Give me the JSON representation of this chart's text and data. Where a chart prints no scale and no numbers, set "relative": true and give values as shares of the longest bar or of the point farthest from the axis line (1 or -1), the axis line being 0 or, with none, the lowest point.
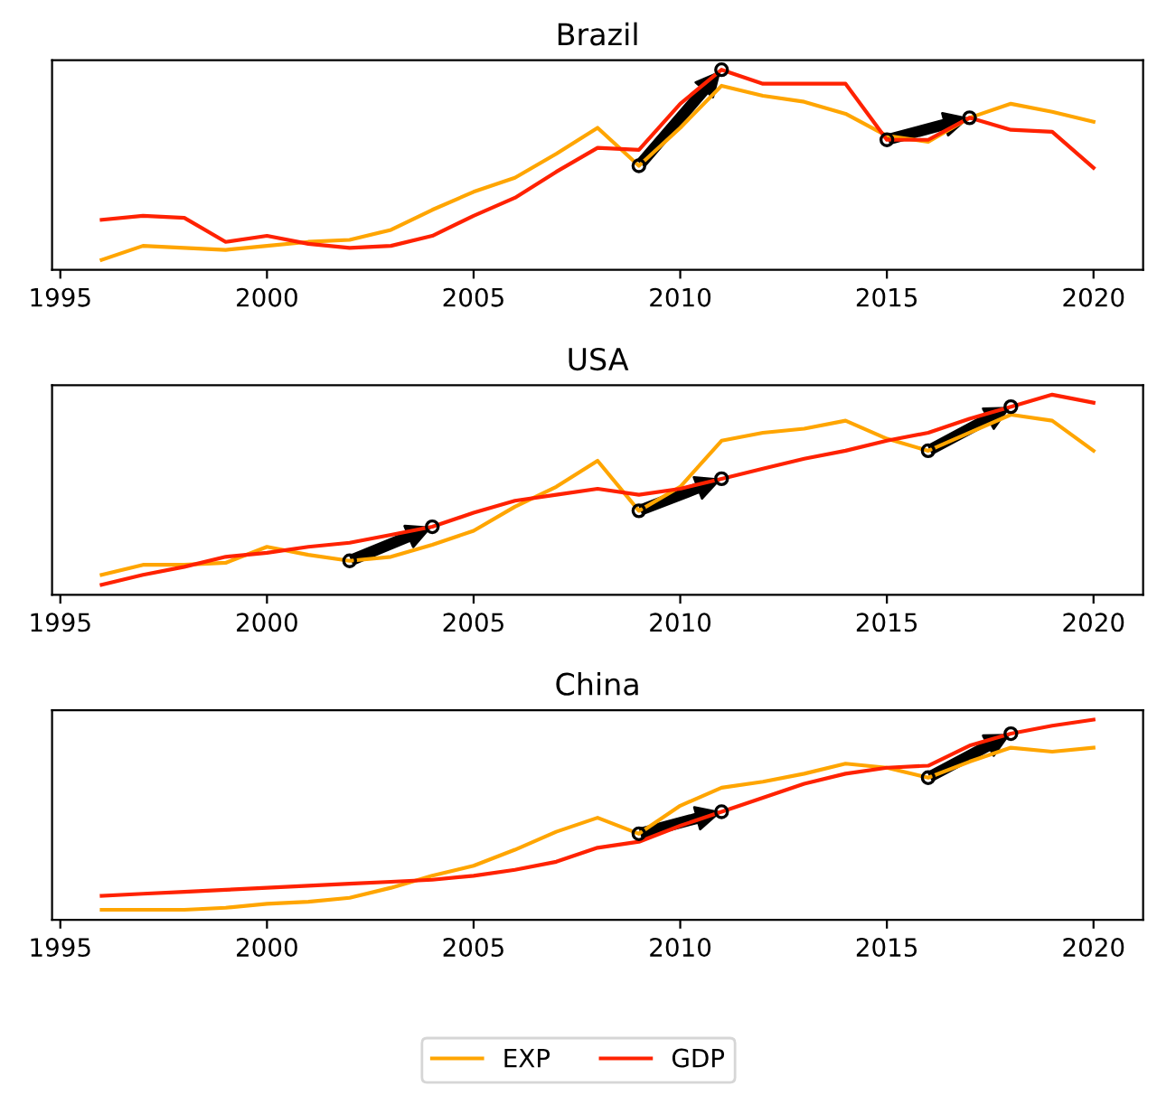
{
  "chart_data": [
    {
      "type": "line",
      "title": "Brazil",
      "relative": true,
      "legend": "bottom",
      "xlim": [
        1994.8,
        2021.2
      ],
      "xticks": [
        1995,
        2000,
        2005,
        2010,
        2015,
        2020
      ],
      "tick_labels": "x",
      "grid": false,
      "x": [
        1996,
        1997,
        1998,
        1999,
        2000,
        2001,
        2002,
        2003,
        2004,
        2005,
        2006,
        2007,
        2008,
        2009,
        2010,
        2011,
        2012,
        2013,
        2014,
        2015,
        2016,
        2017,
        2018,
        2019,
        2020
      ],
      "series": [
        {
          "name": "EXP",
          "color": "#ffa500",
          "values": [
            0.05,
            0.12,
            0.11,
            0.1,
            0.12,
            0.14,
            0.15,
            0.2,
            0.3,
            0.39,
            0.46,
            0.58,
            0.71,
            0.52,
            0.71,
            0.92,
            0.87,
            0.84,
            0.78,
            0.67,
            0.64,
            0.76,
            0.83,
            0.79,
            0.74
          ]
        },
        {
          "name": "GDP",
          "color": "#ff2200",
          "values": [
            0.25,
            0.27,
            0.26,
            0.14,
            0.17,
            0.13,
            0.11,
            0.12,
            0.17,
            0.27,
            0.36,
            0.49,
            0.61,
            0.6,
            0.83,
            1.0,
            0.93,
            0.93,
            0.93,
            0.65,
            0.65,
            0.76,
            0.7,
            0.69,
            0.51
          ]
        },
        {
          "type": "scatter",
          "color": "#000000",
          "marker": "circle",
          "x": [
            2009,
            2011
          ],
          "values": [
            0.52,
            1.0
          ]
        },
        {
          "type": "scatter",
          "color": "#000000",
          "marker": "circle",
          "x": [
            2015,
            2017
          ],
          "values": [
            0.65,
            0.76
          ]
        }
      ]
    },
    {
      "type": "line",
      "title": "USA",
      "relative": true,
      "xlim": [
        1994.8,
        2021.2
      ],
      "xticks": [
        1995,
        2000,
        2005,
        2010,
        2015,
        2020
      ],
      "tick_labels": "x",
      "grid": false,
      "x": [
        1996,
        1997,
        1998,
        1999,
        2000,
        2001,
        2002,
        2003,
        2004,
        2005,
        2006,
        2007,
        2008,
        2009,
        2010,
        2011,
        2012,
        2013,
        2014,
        2015,
        2016,
        2017,
        2018,
        2019,
        2020
      ],
      "series": [
        {
          "name": "EXP",
          "color": "#ffa500",
          "values": [
            0.1,
            0.15,
            0.15,
            0.16,
            0.24,
            0.2,
            0.17,
            0.19,
            0.25,
            0.32,
            0.44,
            0.54,
            0.67,
            0.42,
            0.54,
            0.77,
            0.81,
            0.83,
            0.87,
            0.78,
            0.72,
            0.81,
            0.9,
            0.87,
            0.72
          ]
        },
        {
          "name": "GDP",
          "color": "#ff2200",
          "values": [
            0.05,
            0.1,
            0.14,
            0.19,
            0.21,
            0.24,
            0.26,
            0.3,
            0.34,
            0.41,
            0.47,
            0.5,
            0.53,
            0.5,
            0.53,
            0.58,
            0.63,
            0.68,
            0.72,
            0.77,
            0.81,
            0.88,
            0.94,
            1.0,
            0.96
          ]
        },
        {
          "type": "scatter",
          "color": "#000000",
          "marker": "circle",
          "x": [
            2002,
            2004
          ],
          "values": [
            0.17,
            0.34
          ]
        },
        {
          "type": "scatter",
          "color": "#000000",
          "marker": "circle",
          "x": [
            2009,
            2011
          ],
          "values": [
            0.42,
            0.58
          ]
        },
        {
          "type": "scatter",
          "color": "#000000",
          "marker": "circle",
          "x": [
            2016,
            2018
          ],
          "values": [
            0.72,
            0.94
          ]
        }
      ]
    },
    {
      "type": "line",
      "title": "China",
      "relative": true,
      "xlim": [
        1994.8,
        2021.2
      ],
      "xticks": [
        1995,
        2000,
        2005,
        2010,
        2015,
        2020
      ],
      "tick_labels": "x",
      "grid": false,
      "x": [
        1996,
        1997,
        1998,
        1999,
        2000,
        2001,
        2002,
        2003,
        2004,
        2005,
        2006,
        2007,
        2008,
        2009,
        2010,
        2011,
        2012,
        2013,
        2014,
        2015,
        2016,
        2017,
        2018,
        2019,
        2020
      ],
      "series": [
        {
          "name": "EXP",
          "color": "#ffa500",
          "values": [
            0.05,
            0.05,
            0.05,
            0.06,
            0.08,
            0.09,
            0.11,
            0.16,
            0.22,
            0.27,
            0.35,
            0.44,
            0.51,
            0.43,
            0.57,
            0.66,
            0.69,
            0.73,
            0.78,
            0.76,
            0.71,
            0.79,
            0.86,
            0.84,
            0.86
          ]
        },
        {
          "name": "GDP",
          "color": "#ff2200",
          "values": [
            0.12,
            0.13,
            0.14,
            0.15,
            0.16,
            0.17,
            0.18,
            0.19,
            0.2,
            0.22,
            0.25,
            0.29,
            0.36,
            0.39,
            0.47,
            0.54,
            0.61,
            0.68,
            0.73,
            0.76,
            0.77,
            0.87,
            0.93,
            0.97,
            1.0
          ]
        },
        {
          "type": "scatter",
          "color": "#000000",
          "marker": "circle",
          "x": [
            2009,
            2011
          ],
          "values": [
            0.43,
            0.54
          ]
        },
        {
          "type": "scatter",
          "color": "#000000",
          "marker": "circle",
          "x": [
            2016,
            2018
          ],
          "values": [
            0.71,
            0.93
          ]
        }
      ]
    }
  ]
}
